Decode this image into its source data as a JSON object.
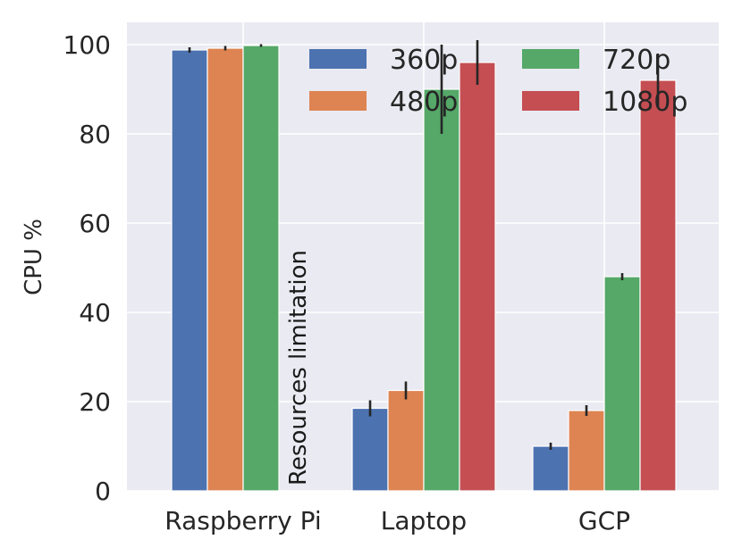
{
  "chart_data": {
    "type": "bar",
    "title": "",
    "xlabel": "",
    "ylabel": "CPU %",
    "ylim": [
      0,
      105
    ],
    "yticks": [
      0,
      20,
      40,
      60,
      80,
      100
    ],
    "categories": [
      "Raspberry Pi",
      "Laptop",
      "GCP"
    ],
    "series": [
      {
        "name": "360p",
        "color": "#4c72b0",
        "values": [
          98.8,
          18.5,
          10.0
        ],
        "errors": [
          0.6,
          1.8,
          0.8
        ]
      },
      {
        "name": "480p",
        "color": "#dd8452",
        "values": [
          99.2,
          22.5,
          18.0
        ],
        "errors": [
          0.5,
          2.0,
          1.2
        ]
      },
      {
        "name": "720p",
        "color": "#55a868",
        "values": [
          99.8,
          90.0,
          48.0
        ],
        "errors": [
          0.3,
          10.0,
          0.8
        ]
      },
      {
        "name": "1080p",
        "color": "#c44e52",
        "values": [
          null,
          96.0,
          92.0
        ],
        "errors": [
          null,
          5.0,
          6.0
        ]
      }
    ],
    "annotations": [
      {
        "text": "Resources limitation",
        "category": "Raspberry Pi",
        "series": "1080p"
      }
    ],
    "legend": "top-right",
    "grid": true
  }
}
